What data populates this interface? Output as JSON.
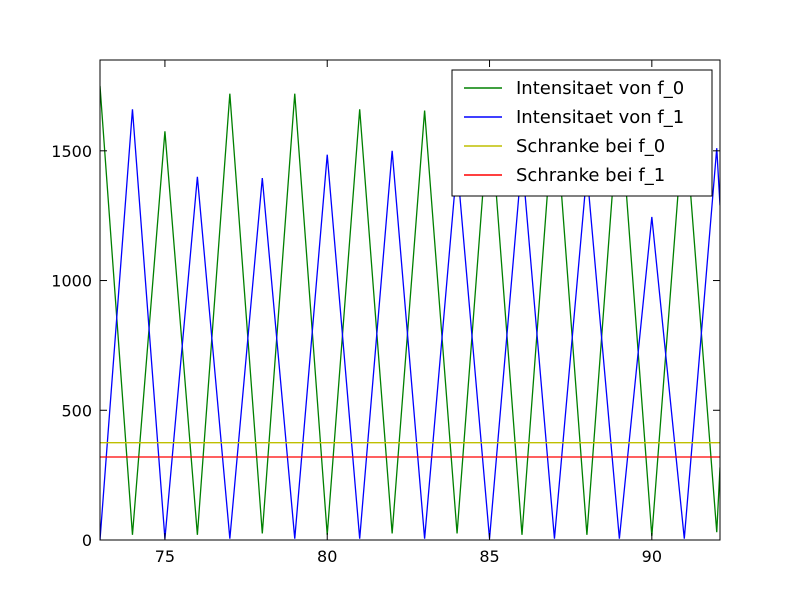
{
  "chart_data": {
    "type": "line",
    "title": "",
    "xlabel": "",
    "ylabel": "",
    "xlim": [
      73,
      92.1
    ],
    "ylim": [
      0,
      1850
    ],
    "x_ticks": [
      75,
      80,
      85,
      90
    ],
    "y_ticks": [
      0,
      500,
      1000,
      1500
    ],
    "grid": false,
    "legend_position": "top-right",
    "series": [
      {
        "name": "Intensitaet von f_0",
        "color": "#008000",
        "x": [
          73,
          74,
          75,
          76,
          77,
          78,
          79,
          80,
          81,
          82,
          83,
          84,
          85,
          86,
          87,
          88,
          89,
          90,
          91,
          92,
          92.1
        ],
        "values": [
          1750,
          20,
          1575,
          20,
          1720,
          25,
          1720,
          20,
          1660,
          25,
          1655,
          25,
          1680,
          20,
          1700,
          20,
          1700,
          15,
          1650,
          30,
          280
        ]
      },
      {
        "name": "Intensitaet von f_1",
        "color": "#0000ff",
        "x": [
          73,
          74,
          75,
          76,
          77,
          78,
          79,
          80,
          81,
          82,
          83,
          84,
          85,
          86,
          87,
          88,
          89,
          90,
          91,
          92,
          92.1
        ],
        "values": [
          0,
          1660,
          5,
          1400,
          5,
          1395,
          5,
          1485,
          5,
          1500,
          5,
          1450,
          5,
          1470,
          5,
          1420,
          5,
          1245,
          5,
          1510,
          1290
        ]
      },
      {
        "name": "Schranke bei f_0",
        "color": "#bfbf00",
        "x": [
          73,
          92.1
        ],
        "values": [
          375,
          375
        ]
      },
      {
        "name": "Schranke bei f_1",
        "color": "#ff0000",
        "x": [
          73,
          92.1
        ],
        "values": [
          320,
          320
        ]
      }
    ]
  }
}
